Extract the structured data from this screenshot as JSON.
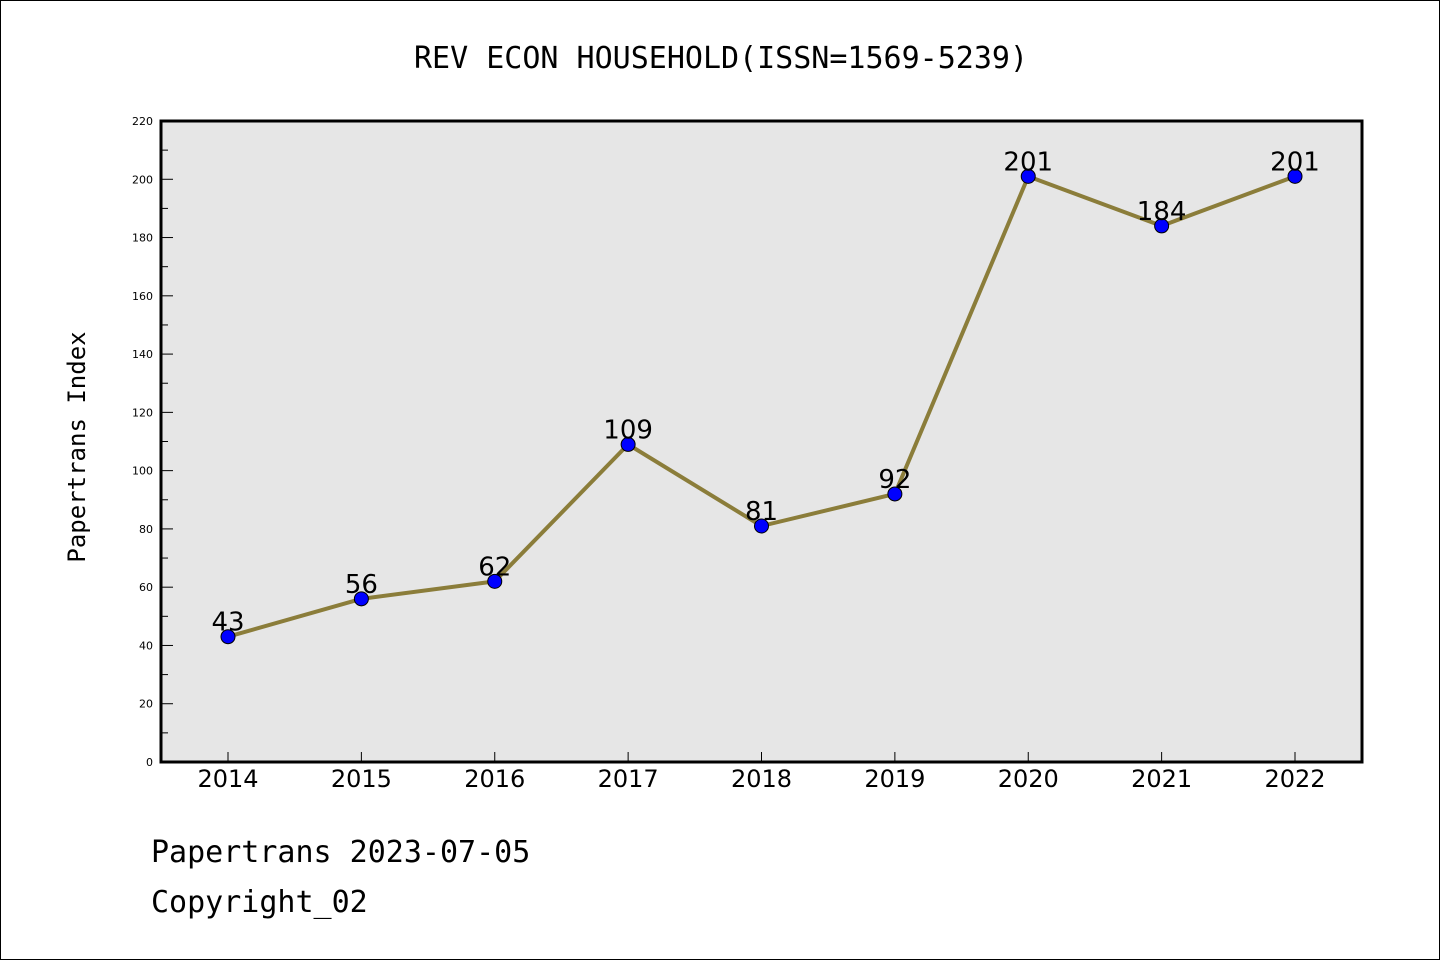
{
  "chart_data": {
    "type": "line",
    "title": "REV ECON HOUSEHOLD(ISSN=1569-5239)",
    "xlabel": "",
    "ylabel": "Papertrans Index",
    "categories": [
      "2014",
      "2015",
      "2016",
      "2017",
      "2018",
      "2019",
      "2020",
      "2021",
      "2022"
    ],
    "values": [
      43,
      56,
      62,
      109,
      81,
      92,
      201,
      184,
      201
    ],
    "ylim": [
      0,
      220
    ],
    "yticks": [
      0,
      20,
      40,
      60,
      80,
      100,
      120,
      140,
      160,
      180,
      200,
      220
    ],
    "grid": false,
    "colors": {
      "line": "#8B7D3A",
      "marker": "#0000FF",
      "plot_background": "#E6E6E6"
    }
  },
  "footer": {
    "date_text": "Papertrans 2023-07-05",
    "copyright_text": "Copyright_02"
  }
}
